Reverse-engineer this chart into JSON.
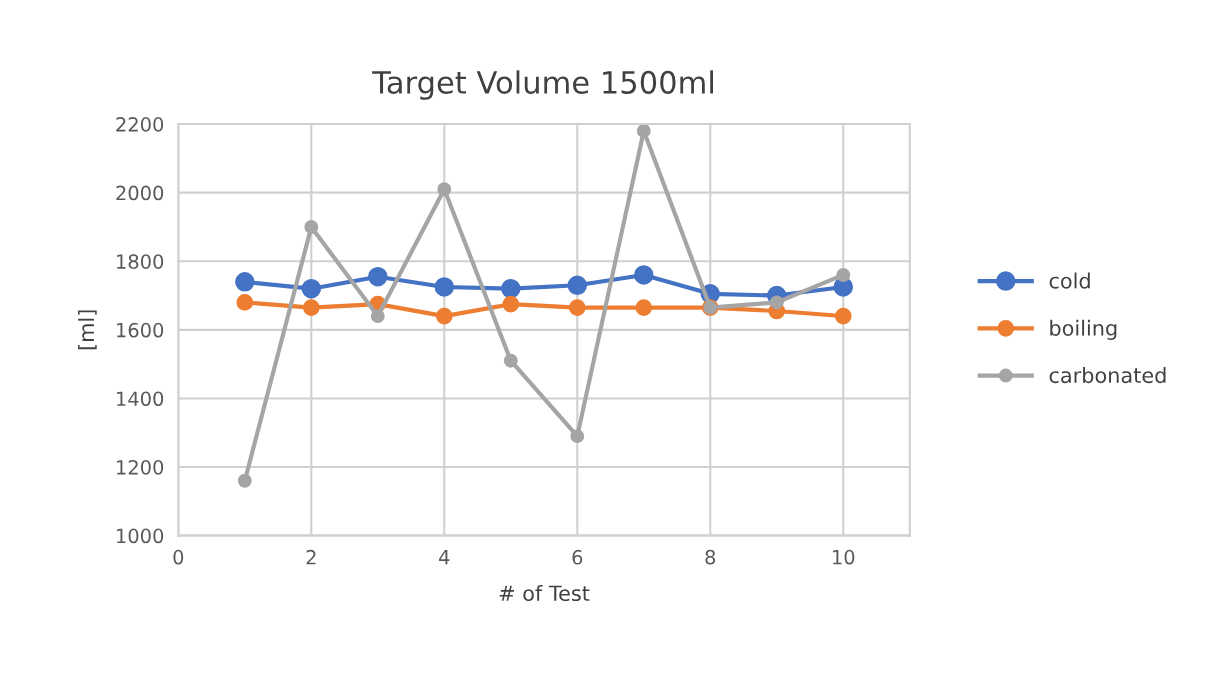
{
  "chart_data": {
    "type": "line",
    "title": "Target Volume 1500ml",
    "xlabel": "# of Test",
    "ylabel": "[ml]",
    "x": [
      1,
      2,
      3,
      4,
      5,
      6,
      7,
      8,
      9,
      10
    ],
    "series": [
      {
        "name": "cold",
        "color": "#4472c4",
        "values": [
          1740,
          1720,
          1755,
          1725,
          1720,
          1730,
          1760,
          1705,
          1700,
          1725
        ]
      },
      {
        "name": "boiling",
        "color": "#ed7d31",
        "values": [
          1680,
          1665,
          1675,
          1640,
          1675,
          1665,
          1665,
          1665,
          1655,
          1640
        ]
      },
      {
        "name": "carbonated",
        "color": "#a5a5a5",
        "values": [
          1160,
          1900,
          1640,
          2010,
          1510,
          1290,
          2180,
          1665,
          1680,
          1760
        ]
      }
    ],
    "xlim": [
      0,
      11
    ],
    "xticks": [
      0,
      2,
      4,
      6,
      8,
      10
    ],
    "ylim": [
      1000,
      2200
    ],
    "yticks": [
      1000,
      1200,
      1400,
      1600,
      1800,
      2000,
      2200
    ],
    "grid": true,
    "legend": "right",
    "marker": "circle",
    "line_style": "solid"
  }
}
